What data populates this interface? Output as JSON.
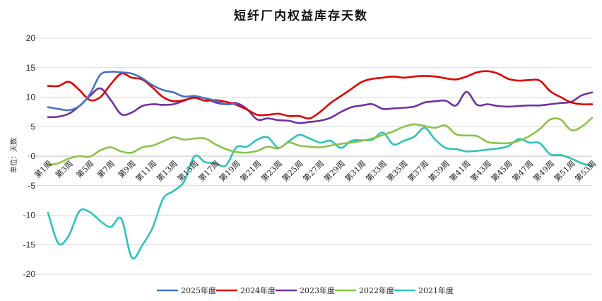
{
  "chart_data": {
    "type": "line",
    "title": "短纤厂内权益库存天数",
    "ylabel": "单位：天数",
    "xlabel": "",
    "ylim": [
      -20,
      20
    ],
    "yticks": [
      -20,
      -15,
      -10,
      -5,
      0,
      5,
      10,
      15,
      20
    ],
    "grid": true,
    "legend_position": "bottom",
    "x_tick_labels": [
      "第1周",
      "第3周",
      "第5周",
      "第7周",
      "第9周",
      "第11周",
      "第13周",
      "第15周",
      "第17周",
      "第19周",
      "第21周",
      "第23周",
      "第25周",
      "第27周",
      "第29周",
      "第31周",
      "第33周",
      "第35周",
      "第37周",
      "第39周",
      "第41周",
      "第43周",
      "第45周",
      "第47周",
      "第49周",
      "第51周",
      "第53周"
    ],
    "x": [
      1,
      2,
      3,
      4,
      5,
      6,
      7,
      8,
      9,
      10,
      11,
      12,
      13,
      14,
      15,
      16,
      17,
      18,
      19,
      20,
      21,
      22,
      23,
      24,
      25,
      26,
      27,
      28,
      29,
      30,
      31,
      32,
      33,
      34,
      35,
      36,
      37,
      38,
      39,
      40,
      41,
      42,
      43,
      44,
      45,
      46,
      47,
      48,
      49,
      50,
      51,
      52,
      53
    ],
    "series": [
      {
        "name": "2025年度",
        "color": "#4472C4",
        "values": [
          8.3,
          8.0,
          7.8,
          8.5,
          10.5,
          13.8,
          14.3,
          14.2,
          14.0,
          13.2,
          12.0,
          11.2,
          10.8,
          10.1,
          10.2,
          9.8,
          9.4,
          8.8,
          8.9,
          null,
          null,
          null,
          null,
          null,
          null,
          null,
          null,
          null,
          null,
          null,
          null,
          null,
          null,
          null,
          null,
          null,
          null,
          null,
          null,
          null,
          null,
          null,
          null,
          null,
          null,
          null,
          null,
          null,
          null,
          null,
          null,
          null,
          null
        ]
      },
      {
        "name": "2024年度",
        "color": "#E00000",
        "values": [
          11.9,
          11.9,
          12.6,
          11.2,
          9.5,
          10.0,
          12.2,
          14.0,
          13.3,
          13.0,
          11.6,
          10.0,
          9.3,
          9.5,
          9.9,
          9.4,
          9.5,
          9.2,
          8.7,
          7.9,
          7.0,
          7.0,
          7.2,
          6.8,
          6.8,
          6.4,
          7.5,
          9.0,
          10.2,
          11.4,
          12.6,
          13.1,
          13.3,
          13.5,
          13.3,
          13.5,
          13.6,
          13.5,
          13.2,
          13.0,
          13.5,
          14.2,
          14.4,
          14.0,
          13.1,
          12.8,
          12.9,
          12.8,
          11.0,
          10.0,
          9.1,
          8.8,
          8.8
        ]
      },
      {
        "name": "2023年度",
        "color": "#7030A0",
        "values": [
          6.6,
          6.7,
          7.2,
          8.5,
          10.2,
          11.5,
          9.5,
          7.1,
          7.4,
          8.5,
          8.8,
          8.7,
          8.8,
          9.4,
          10.0,
          9.8,
          9.1,
          8.8,
          9.0,
          8.0,
          6.2,
          6.4,
          6.1,
          6.0,
          5.6,
          5.8,
          6.0,
          6.5,
          7.5,
          8.3,
          8.6,
          8.8,
          8.0,
          8.1,
          8.2,
          8.4,
          9.1,
          9.3,
          9.4,
          8.6,
          10.9,
          8.7,
          8.8,
          8.5,
          8.4,
          8.5,
          8.6,
          8.6,
          8.8,
          9.0,
          9.2,
          10.3,
          10.8
        ]
      },
      {
        "name": "2022年度",
        "color": "#8BC34A",
        "values": [
          -1.5,
          -1.2,
          -0.4,
          0.0,
          -0.1,
          1.0,
          1.5,
          0.8,
          0.6,
          1.5,
          1.8,
          2.5,
          3.2,
          2.8,
          3.0,
          3.0,
          2.0,
          1.2,
          0.7,
          0.6,
          0.9,
          1.6,
          1.3,
          2.3,
          1.8,
          1.6,
          1.5,
          1.8,
          2.1,
          2.3,
          2.6,
          3.0,
          3.6,
          4.2,
          5.0,
          5.4,
          5.1,
          4.8,
          5.2,
          3.7,
          3.5,
          3.4,
          2.4,
          2.2,
          2.2,
          2.6,
          3.4,
          4.6,
          6.2,
          6.2,
          4.4,
          5.0,
          6.5
        ]
      },
      {
        "name": "2021年度",
        "color": "#2EC4B6",
        "values": [
          -9.6,
          -14.8,
          -13.4,
          -9.3,
          -9.5,
          -11.0,
          -12.0,
          -10.6,
          -17.2,
          -15.1,
          -12.1,
          -7.2,
          -5.9,
          -4.3,
          0.0,
          -1.0,
          -1.2,
          -1.6,
          1.5,
          1.6,
          2.8,
          3.2,
          1.4,
          2.5,
          3.6,
          3.0,
          2.3,
          2.6,
          1.4,
          2.6,
          2.7,
          2.8,
          4.0,
          2.0,
          2.6,
          3.3,
          4.8,
          2.8,
          1.4,
          1.2,
          0.8,
          0.9,
          1.1,
          1.3,
          1.7,
          2.9,
          2.3,
          2.2,
          0.3,
          0.2,
          -0.4,
          -1.2,
          -1.7
        ]
      }
    ]
  }
}
